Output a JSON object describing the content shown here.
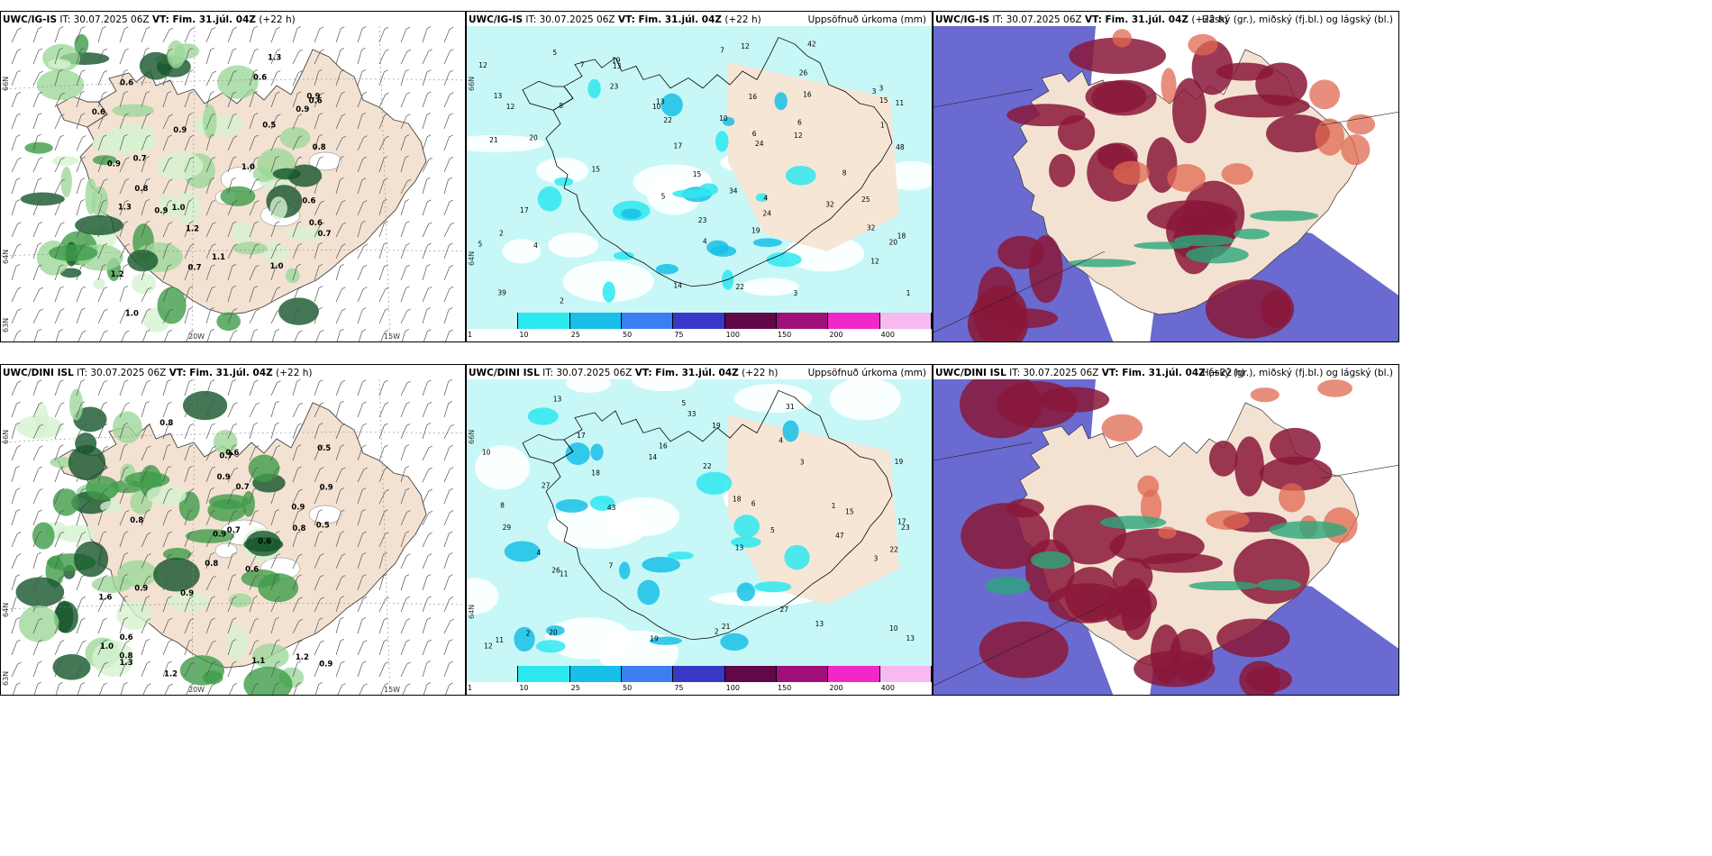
{
  "panels": {
    "igis_wind": {
      "title_a": "UWC/IG-IS",
      "title_b": " IT: 30.07.2025 06Z ",
      "title_vt": "VT: Fim. 31.júl. 04Z",
      "title_c": " (+22 h)",
      "right": ""
    },
    "igis_precip": {
      "title_a": "UWC/IG-IS",
      "title_b": " IT: 30.07.2025 06Z ",
      "title_vt": "VT: Fim. 31.júl. 04Z",
      "title_c": " (+22 h)",
      "right": "Uppsöfnuð úrkoma (mm)"
    },
    "igis_cloud": {
      "title_a": "UWC/IG-IS",
      "title_b": " IT: 30.07.2025 06Z ",
      "title_vt": "VT: Fim. 31.júl. 04Z",
      "title_c": " (+22 h)",
      "right": "Háský (gr.), miðský (fj.bl.) og lágský (bl.)"
    },
    "dini_wind": {
      "title_a": "UWC/DINI ISL",
      "title_b": " IT: 30.07.2025 06Z ",
      "title_vt": "VT: Fim. 31.júl. 04Z",
      "title_c": " (+22 h)",
      "right": ""
    },
    "dini_precip": {
      "title_a": "UWC/DINI ISL",
      "title_b": " IT: 30.07.2025 06Z ",
      "title_vt": "VT: Fim. 31.júl. 04Z",
      "title_c": " (+22 h)",
      "right": "Uppsöfnuð úrkoma (mm)"
    },
    "dini_cloud": {
      "title_a": "UWC/DINI ISL",
      "title_b": " IT: 30.07.2025 06Z ",
      "title_vt": "VT: Fim. 31.júl. 04Z",
      "title_c": " (+22 h)",
      "right": "Háský (gr.), miðský (fj.bl.) og lágský (bl.)"
    }
  },
  "axes": {
    "lat66": "66N",
    "lat64": "64N",
    "lat63": "63N",
    "lon20": "20W",
    "lon15": "15W"
  },
  "colorbar": {
    "ticks": [
      "1",
      "10",
      "25",
      "50",
      "75",
      "100",
      "150",
      "200",
      "400"
    ],
    "colors": [
      "#c8f7f7",
      "#2ee8f0",
      "#18c0e8",
      "#3a7ef0",
      "#3838c8",
      "#600848",
      "#a01078",
      "#f028c8",
      "#f8b8f0"
    ]
  },
  "wind_labels_igis": [
    "0.6",
    "1.1",
    "0.9",
    "0.6",
    "0.7",
    "0.9",
    "0.6",
    "0.8",
    "1.2",
    "0.9",
    "1.0",
    "1.2",
    "0.9",
    "1.3",
    "1.0",
    "0.9",
    "0.8",
    "0.7",
    "1.0",
    "0.6",
    "0.5",
    "0.6",
    "0.7",
    "0.6",
    "1.3",
    "1.0"
  ],
  "wind_labels_dini": [
    "0.6",
    "0.8",
    "0.8",
    "1.2",
    "1.1",
    "0.9",
    "0.7",
    "0.6",
    "0.9",
    "0.8",
    "1.3",
    "0.7",
    "0.5",
    "0.6",
    "0.8",
    "1.2",
    "0.9",
    "0.6",
    "0.9",
    "1.0",
    "0.8",
    "0.9",
    "0.7",
    "1.6",
    "0.5",
    "0.9",
    "0.9"
  ],
  "precip_labels_igis": [
    "4",
    "10",
    "3",
    "4",
    "3",
    "5",
    "7",
    "11",
    "26",
    "34",
    "32",
    "18",
    "21",
    "39",
    "8",
    "12",
    "6",
    "3",
    "10",
    "13",
    "15",
    "19",
    "17",
    "20",
    "15",
    "22",
    "19",
    "14",
    "24",
    "32",
    "23",
    "12",
    "48",
    "12",
    "13",
    "17",
    "15",
    "25",
    "22",
    "16",
    "20",
    "12",
    "5",
    "7",
    "2",
    "1",
    "2",
    "23",
    "24",
    "16",
    "13",
    "42",
    "5",
    "8",
    "6",
    "4",
    "1",
    "12"
  ],
  "precip_labels_dini": [
    "7",
    "5",
    "4",
    "3",
    "13",
    "22",
    "19",
    "15",
    "17",
    "13",
    "18",
    "13",
    "27",
    "19",
    "10",
    "8",
    "11",
    "6",
    "13",
    "16",
    "17",
    "19",
    "10",
    "43",
    "29",
    "27",
    "22",
    "33",
    "20",
    "18",
    "12",
    "14",
    "21",
    "23",
    "26",
    "11",
    "31",
    "47",
    "5",
    "2",
    "4",
    "3",
    "1",
    "2"
  ],
  "chart_data": {
    "type": "map",
    "colorbar_ticks_mm": [
      1,
      10,
      25,
      50,
      75,
      100,
      150,
      200,
      400
    ]
  }
}
